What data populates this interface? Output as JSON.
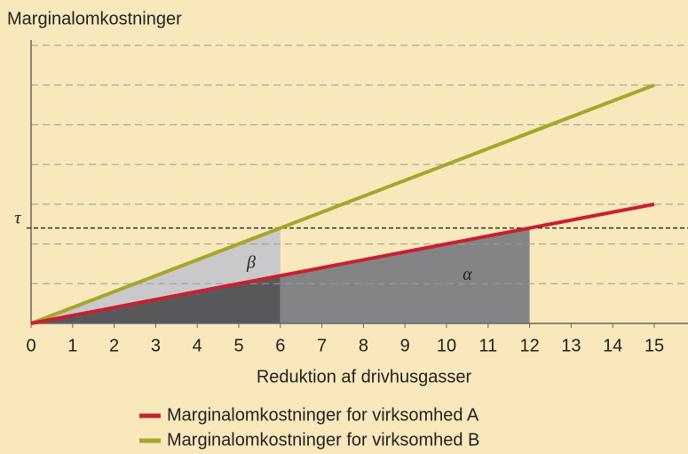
{
  "chart_data": {
    "type": "line",
    "y_label": "Marginalomkostninger",
    "x_label": "Reduktion af drivhusgasser",
    "xlim": [
      0,
      15
    ],
    "ylim": [
      0,
      7
    ],
    "xticks": [
      0,
      1,
      2,
      3,
      4,
      5,
      6,
      7,
      8,
      9,
      10,
      11,
      12,
      13,
      14,
      15
    ],
    "yticks": [
      1,
      2,
      3,
      4,
      5,
      6,
      7
    ],
    "grid": true,
    "series": [
      {
        "name": "Marginalomkostninger for virksomhed A",
        "color": "#c8202f",
        "x": [
          0,
          15
        ],
        "values": [
          0,
          3
        ]
      },
      {
        "name": "Marginalomkostninger for virksomhed B",
        "color": "#a6a62a",
        "x": [
          0,
          15
        ],
        "values": [
          0,
          6
        ]
      }
    ],
    "areas": [
      {
        "color": "#c9c9cb",
        "x": [
          0,
          6,
          6
        ],
        "values": [
          0,
          2.4,
          1.2
        ]
      },
      {
        "color": "#58585b",
        "x": [
          0,
          6,
          6
        ],
        "values": [
          0,
          1.2,
          0
        ]
      },
      {
        "color": "#848487",
        "x": [
          6,
          12,
          12,
          6
        ],
        "values": [
          0,
          0,
          2.4,
          1.2
        ]
      }
    ],
    "tau": {
      "label": "τ",
      "value": 2.4
    },
    "annotations": [
      {
        "text": "β",
        "x": 5.3,
        "y": 1.5
      },
      {
        "text": "α",
        "x": 10.5,
        "y": 1.2
      }
    ]
  }
}
